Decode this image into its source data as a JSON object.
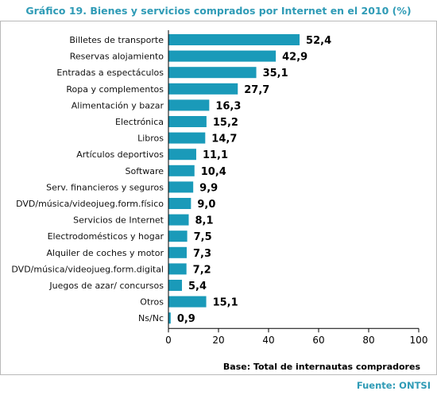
{
  "chart_data": {
    "type": "bar",
    "orientation": "horizontal",
    "title": "Gráfico 19. Bienes y servicios comprados por Internet en el 2010 (%)",
    "categories": [
      "Billetes de transporte",
      "Reservas alojamiento",
      "Entradas a espectáculos",
      "Ropa y complementos",
      "Alimentación y bazar",
      "Electrónica",
      "Libros",
      "Artículos deportivos",
      "Software",
      "Serv. financieros y seguros",
      "DVD/música/videojueg.form.físico",
      "Servicios de Internet",
      "Electrodomésticos y hogar",
      "Alquiler de coches y motor",
      "DVD/música/videojueg.form.digital",
      "Juegos de azar/ concursos",
      "Otros",
      "Ns/Nc"
    ],
    "values": [
      52.4,
      42.9,
      35.1,
      27.7,
      16.3,
      15.2,
      14.7,
      11.1,
      10.4,
      9.9,
      9.0,
      8.1,
      7.5,
      7.3,
      7.2,
      5.4,
      15.1,
      0.9
    ],
    "value_labels": [
      "52,4",
      "42,9",
      "35,1",
      "27,7",
      "16,3",
      "15,2",
      "14,7",
      "11,1",
      "10,4",
      "9,9",
      "9,0",
      "8,1",
      "7,5",
      "7,3",
      "7,2",
      "5,4",
      "15,1",
      "0,9"
    ],
    "xlim": [
      0,
      100
    ],
    "xticks": [
      0,
      20,
      40,
      60,
      80,
      100
    ],
    "bar_color": "#1a9ab9",
    "grid": false,
    "note": "Base: Total de internautas compradores",
    "source": "Fuente: ONTSI"
  }
}
